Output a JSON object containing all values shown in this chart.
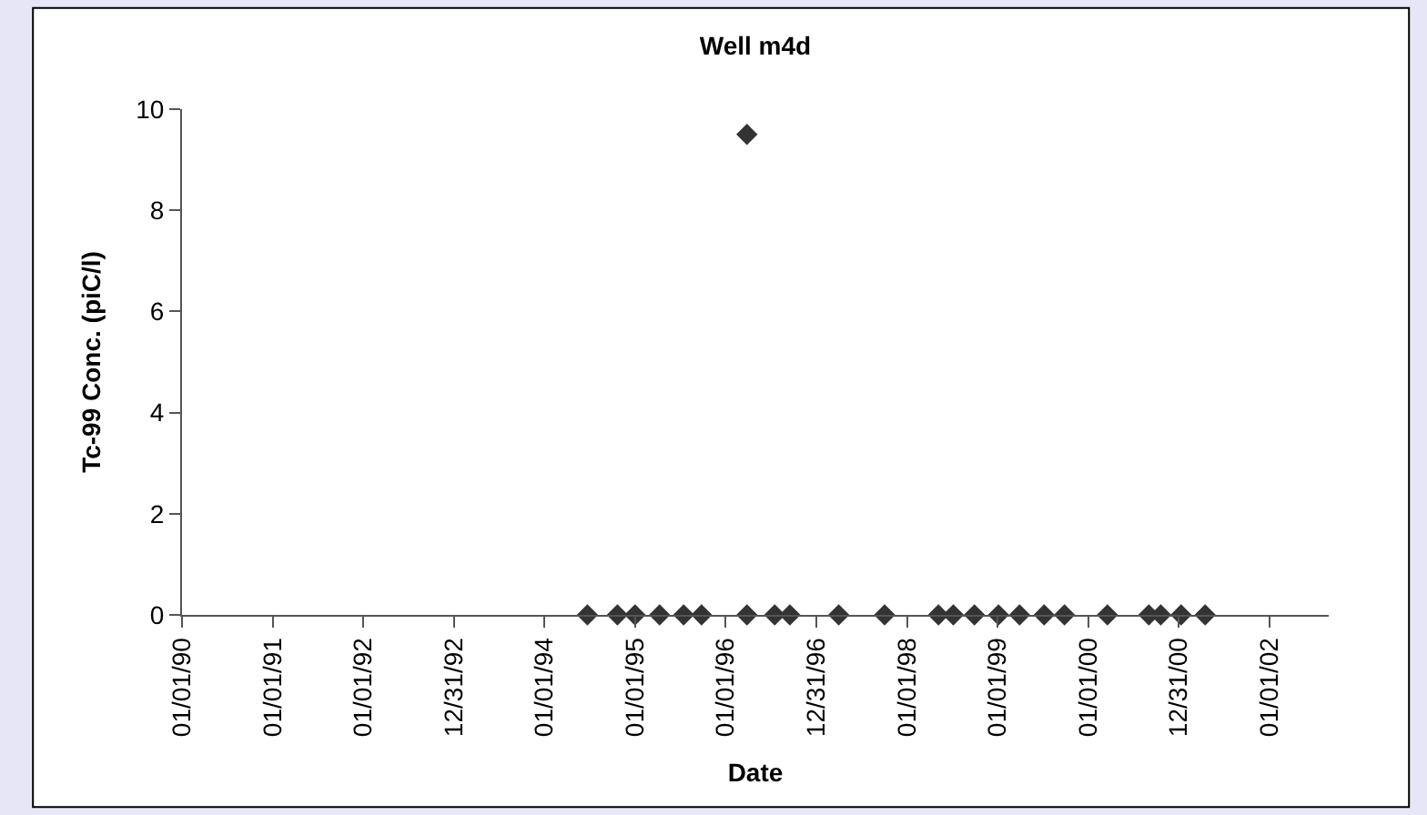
{
  "chart_data": {
    "type": "scatter",
    "title": "Well m4d",
    "xlabel": "Date",
    "ylabel": "Tc-99 Conc. (piC/l)",
    "marker": "diamond",
    "x": [
      "1994-06-23",
      "1994-10-22",
      "1995-01-01",
      "1995-04-10",
      "1995-07-16",
      "1995-09-26",
      "1996-03-27",
      "1996-03-27",
      "1996-07-17",
      "1996-09-16",
      "1997-04-01",
      "1997-10-03",
      "1998-05-08",
      "1998-07-07",
      "1998-09-30",
      "1999-01-05",
      "1999-03-31",
      "1999-07-08",
      "1999-09-28",
      "2000-03-19",
      "2000-09-02",
      "2000-10-20",
      "2001-01-10",
      "2001-04-17"
    ],
    "series": [
      {
        "color": "#333333",
        "values": [
          0,
          0,
          0,
          0,
          0,
          0,
          9.5,
          0,
          0,
          0,
          0,
          0,
          0,
          0,
          0,
          0,
          0,
          0,
          0,
          0,
          0,
          0,
          0,
          0
        ]
      }
    ],
    "xlim": [
      "1990-01-01",
      "2002-08-28"
    ],
    "xticks": [
      {
        "value": "1990-01-01",
        "label": "01/01/90"
      },
      {
        "value": "1991-01-01",
        "label": "01/01/91"
      },
      {
        "value": "1992-01-01",
        "label": "01/01/92"
      },
      {
        "value": "1992-12-31",
        "label": "12/31/92"
      },
      {
        "value": "1994-01-01",
        "label": "01/01/94"
      },
      {
        "value": "1995-01-01",
        "label": "01/01/95"
      },
      {
        "value": "1996-01-01",
        "label": "01/01/96"
      },
      {
        "value": "1996-12-31",
        "label": "12/31/96"
      },
      {
        "value": "1998-01-01",
        "label": "01/01/98"
      },
      {
        "value": "1999-01-01",
        "label": "01/01/99"
      },
      {
        "value": "2000-01-01",
        "label": "01/01/00"
      },
      {
        "value": "2000-12-31",
        "label": "12/31/00"
      },
      {
        "value": "2002-01-01",
        "label": "01/01/02"
      }
    ],
    "ylim": [
      0,
      10
    ],
    "yticks": [
      0,
      2,
      4,
      6,
      8,
      10
    ]
  }
}
